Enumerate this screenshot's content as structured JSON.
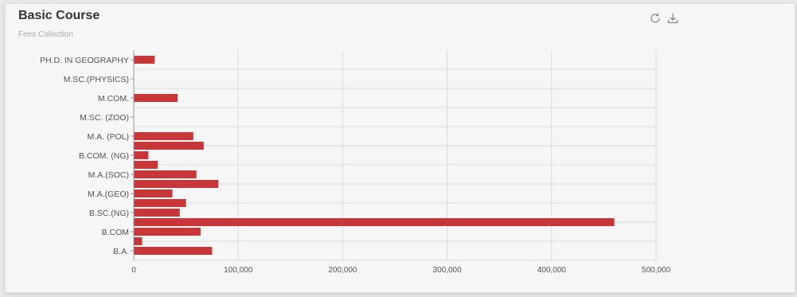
{
  "card": {
    "title": "Basic Course",
    "subtitle": "Fees Collection"
  },
  "toolbar": {
    "icons": [
      "refresh-icon",
      "download-icon"
    ]
  },
  "colors": {
    "bar": "#c7373a",
    "grid": "#d9d9d9",
    "axis": "#9a9a9a"
  },
  "chart_data": {
    "type": "bar",
    "orientation": "horizontal",
    "title": "Basic Course",
    "subtitle": "Fees Collection",
    "xlim": [
      0,
      500000
    ],
    "xticks": [
      0,
      100000,
      200000,
      300000,
      400000,
      500000
    ],
    "xtick_labels": [
      "0",
      "100,000",
      "200,000",
      "300,000",
      "400,000",
      "500,000"
    ],
    "grid": true,
    "categories": [
      "PH.D. IN GEOGRAPHY",
      "M.SC.(PHYSICS)",
      "M.COM.",
      "M.SC. (ZOO)",
      "M.A. (POL)",
      "B.COM. (NG)",
      "M.A.(SOC)",
      "M.A.(GEO)",
      "B.SC.(NG)",
      "B.COM",
      "B.A."
    ],
    "bars": [
      {
        "slot": 0.0,
        "value": 20000
      },
      {
        "slot": 2.0,
        "value": 42000
      },
      {
        "slot": 4.0,
        "value": 57000
      },
      {
        "slot": 4.5,
        "value": 67000
      },
      {
        "slot": 5.0,
        "value": 14000
      },
      {
        "slot": 5.5,
        "value": 23000
      },
      {
        "slot": 6.0,
        "value": 60000
      },
      {
        "slot": 6.5,
        "value": 81000
      },
      {
        "slot": 7.0,
        "value": 37000
      },
      {
        "slot": 7.5,
        "value": 50000
      },
      {
        "slot": 8.0,
        "value": 44000
      },
      {
        "slot": 8.5,
        "value": 460000
      },
      {
        "slot": 9.0,
        "value": 64000
      },
      {
        "slot": 9.5,
        "value": 8000
      },
      {
        "slot": 10.0,
        "value": 75000
      }
    ]
  }
}
